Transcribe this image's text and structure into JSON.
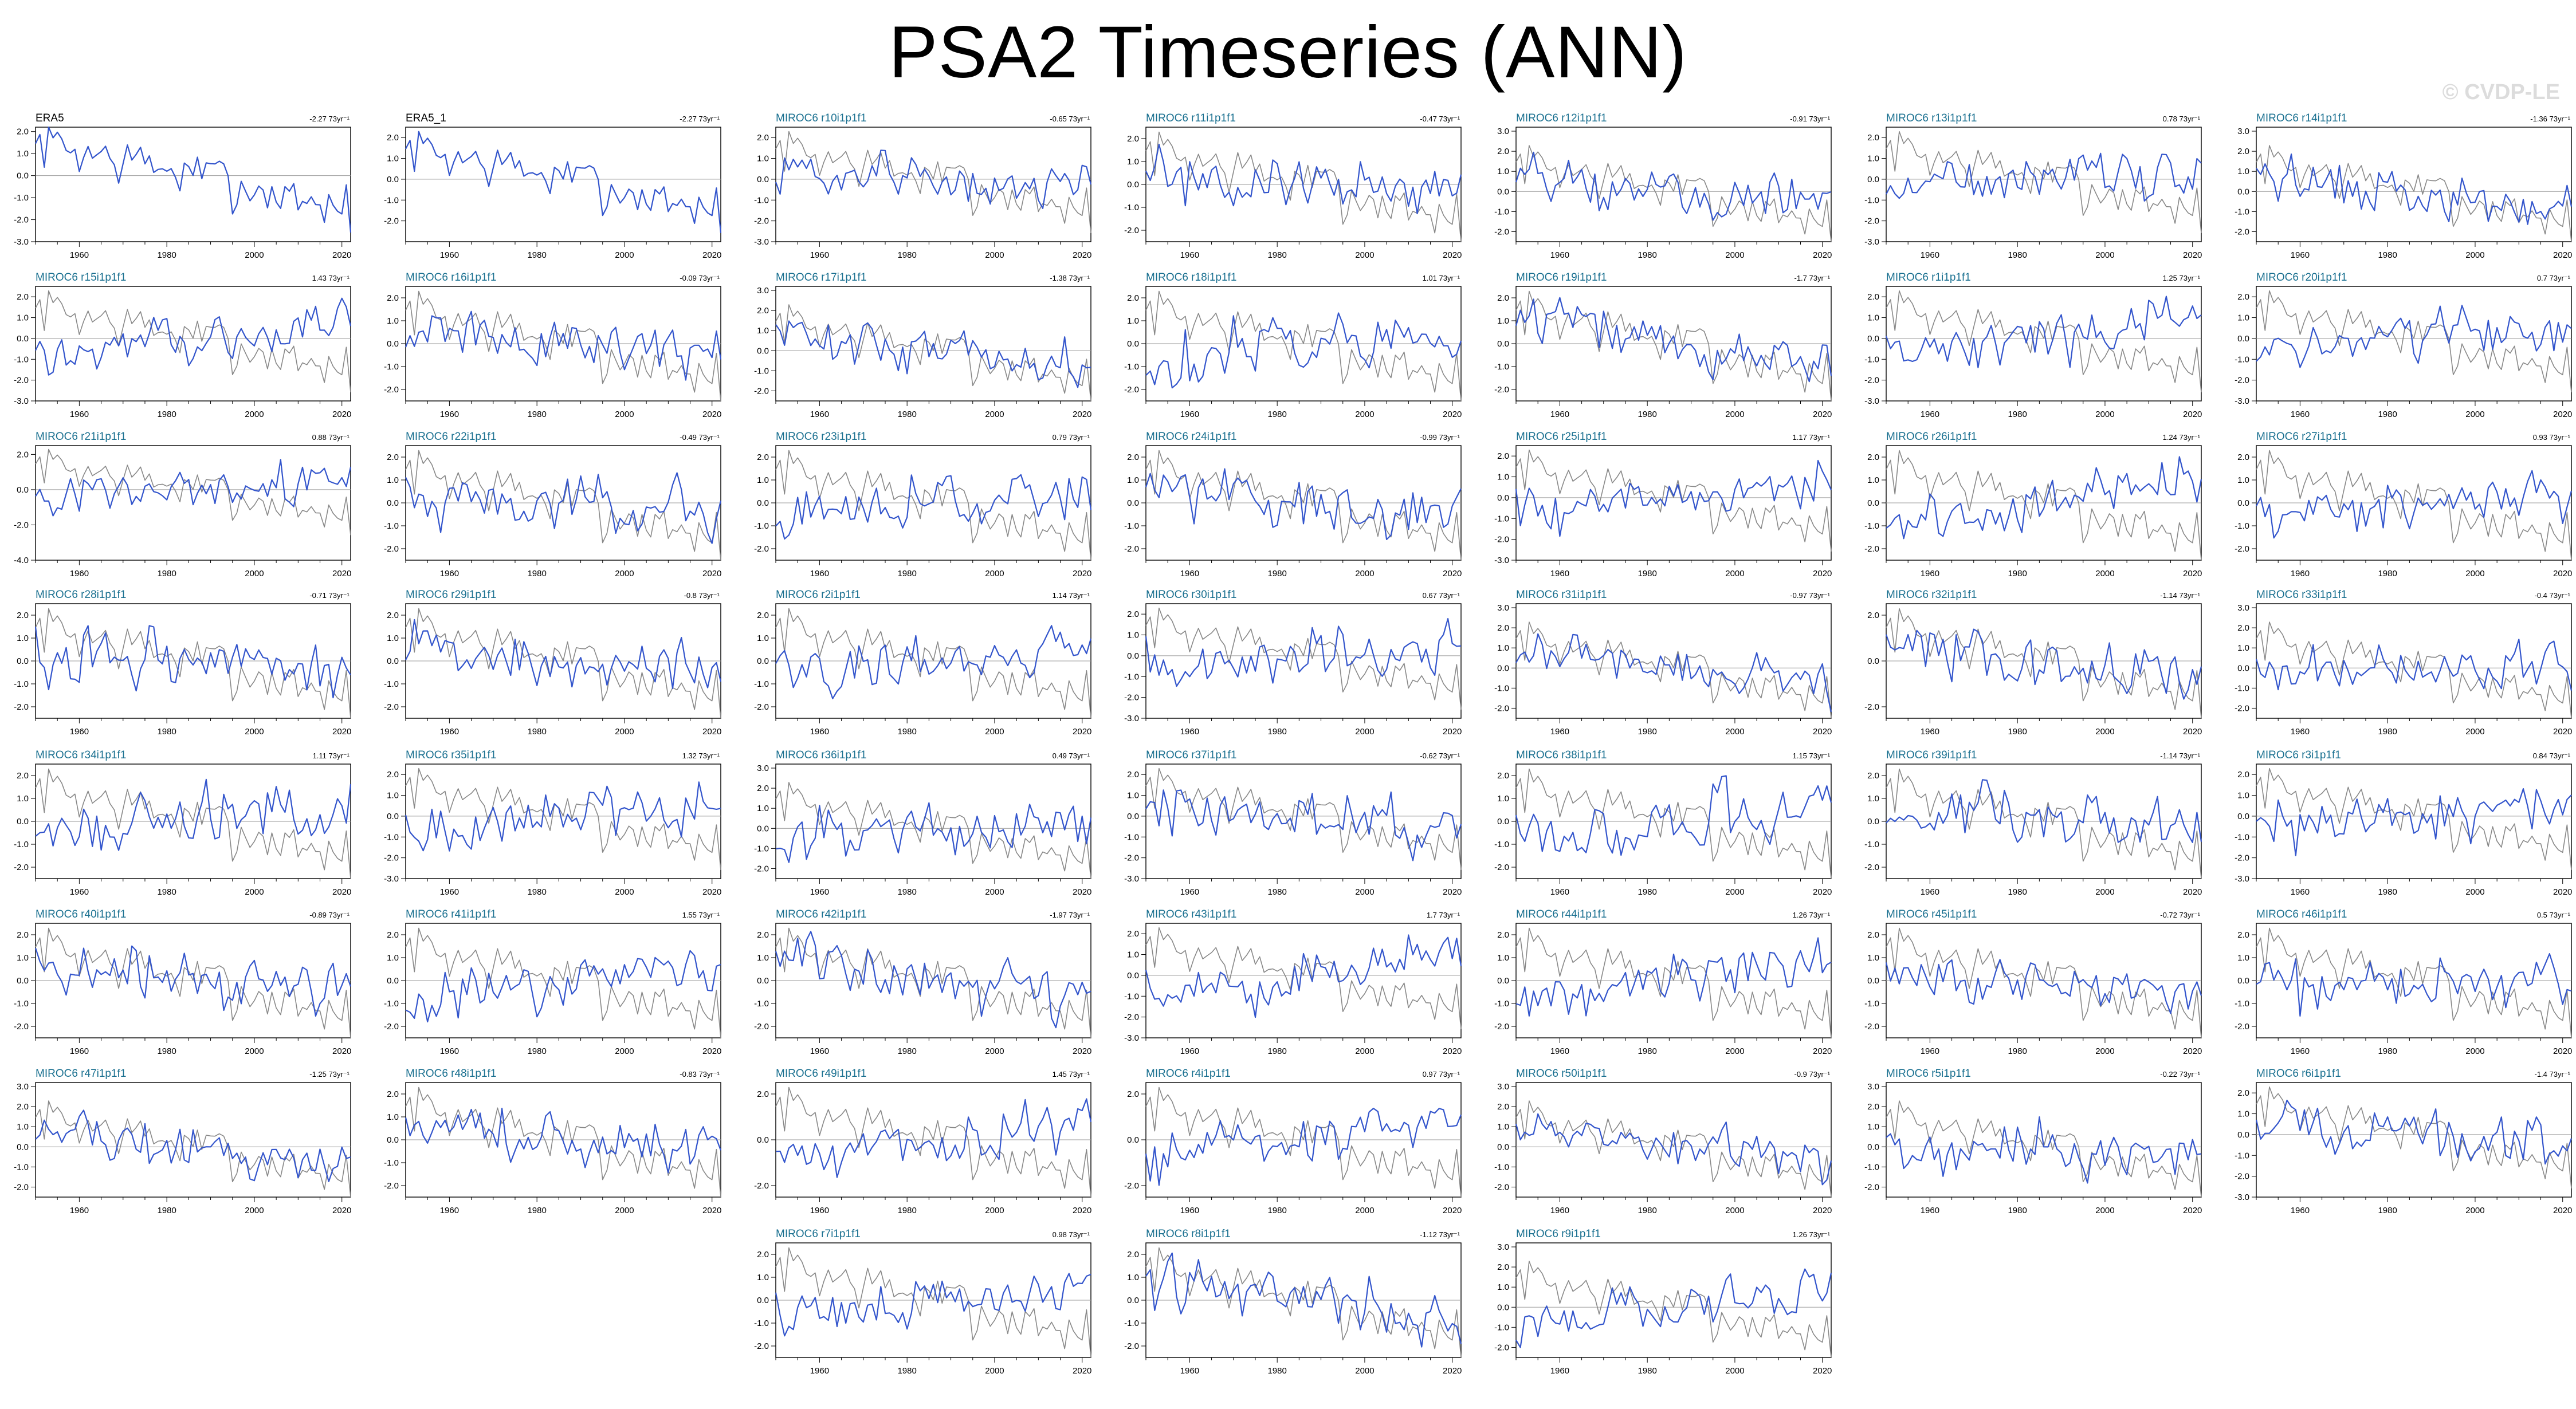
{
  "title": "PSA2 Timeseries (ANN)",
  "watermark": "© CVDP-LE",
  "colors": {
    "model_line": "#3355cc",
    "obs_line": "#888888",
    "model_title": "#1a7090",
    "obs_title": "#000000",
    "zero_line": "#9a9a9a",
    "frame": "#000000"
  },
  "chart_data": {
    "type": "line",
    "shared": {
      "x_range": [
        1950,
        2022
      ],
      "x_ticks": [
        1960,
        1980,
        2000,
        2020
      ],
      "trend_unit_label": "73yr⁻¹",
      "observed_reference": "ERA5 series drawn in grey beneath each MIROC6 member",
      "grid": false
    },
    "panels": [
      {
        "name": "ERA5",
        "trend": "-2.27",
        "obs": true,
        "yticks": [
          "2.0",
          "1.0",
          "0.0",
          "-1.0",
          "-2.0",
          "-3.0"
        ],
        "ylim": [
          -3,
          2.2
        ]
      },
      {
        "name": "ERA5_1",
        "trend": "-2.27",
        "obs": true,
        "yticks": [
          "2.0",
          "1.0",
          "0.0",
          "-1.0",
          "-2.0"
        ],
        "ylim": [
          -3,
          2.5
        ]
      },
      {
        "name": "MIROC6 r10i1p1f1",
        "trend": "-0.65",
        "obs": false,
        "yticks": [
          "2.0",
          "1.0",
          "0.0",
          "-1.0",
          "-2.0",
          "-3.0"
        ],
        "ylim": [
          -3,
          2.5
        ]
      },
      {
        "name": "MIROC6 r11i1p1f1",
        "trend": "-0.47",
        "obs": false,
        "yticks": [
          "2.0",
          "1.0",
          "0.0",
          "-1.0",
          "-2.0"
        ],
        "ylim": [
          -2.5,
          2.5
        ]
      },
      {
        "name": "MIROC6 r12i1p1f1",
        "trend": "-0.91",
        "obs": false,
        "yticks": [
          "3.0",
          "2.0",
          "1.0",
          "0.0",
          "-1.0",
          "-2.0"
        ],
        "ylim": [
          -2.5,
          3.2
        ]
      },
      {
        "name": "MIROC6 r13i1p1f1",
        "trend": "0.78",
        "obs": false,
        "yticks": [
          "2.0",
          "1.0",
          "0.0",
          "-1.0",
          "-2.0",
          "-3.0"
        ],
        "ylim": [
          -3,
          2.5
        ]
      },
      {
        "name": "MIROC6 r14i1p1f1",
        "trend": "-1.36",
        "obs": false,
        "yticks": [
          "3.0",
          "2.0",
          "1.0",
          "0.0",
          "-1.0",
          "-2.0"
        ],
        "ylim": [
          -2.5,
          3.2
        ]
      },
      {
        "name": "MIROC6 r15i1p1f1",
        "trend": "1.43",
        "obs": false,
        "yticks": [
          "2.0",
          "1.0",
          "0.0",
          "-1.0",
          "-2.0",
          "-3.0"
        ],
        "ylim": [
          -3,
          2.5
        ]
      },
      {
        "name": "MIROC6 r16i1p1f1",
        "trend": "-0.09",
        "obs": false,
        "yticks": [
          "2.0",
          "1.0",
          "0.0",
          "-1.0",
          "-2.0"
        ],
        "ylim": [
          -2.5,
          2.5
        ]
      },
      {
        "name": "MIROC6 r17i1p1f1",
        "trend": "-1.38",
        "obs": false,
        "yticks": [
          "3.0",
          "2.0",
          "1.0",
          "0.0",
          "-1.0",
          "-2.0"
        ],
        "ylim": [
          -2.5,
          3.2
        ]
      },
      {
        "name": "MIROC6 r18i1p1f1",
        "trend": "1.01",
        "obs": false,
        "yticks": [
          "2.0",
          "1.0",
          "0.0",
          "-1.0",
          "-2.0"
        ],
        "ylim": [
          -2.5,
          2.5
        ]
      },
      {
        "name": "MIROC6 r19i1p1f1",
        "trend": "-1.7",
        "obs": false,
        "yticks": [
          "2.0",
          "1.0",
          "0.0",
          "-1.0",
          "-2.0"
        ],
        "ylim": [
          -2.5,
          2.5
        ]
      },
      {
        "name": "MIROC6 r1i1p1f1",
        "trend": "1.25",
        "obs": false,
        "yticks": [
          "2.0",
          "1.0",
          "0.0",
          "-1.0",
          "-2.0",
          "-3.0"
        ],
        "ylim": [
          -3,
          2.5
        ]
      },
      {
        "name": "MIROC6 r20i1p1f1",
        "trend": "0.7",
        "obs": false,
        "yticks": [
          "2.0",
          "1.0",
          "0.0",
          "-1.0",
          "-2.0",
          "-3.0"
        ],
        "ylim": [
          -3,
          2.5
        ]
      },
      {
        "name": "MIROC6 r21i1p1f1",
        "trend": "0.88",
        "obs": false,
        "yticks": [
          "2.0",
          "0.0",
          "-2.0",
          "-4.0"
        ],
        "ylim": [
          -4,
          2.5
        ]
      },
      {
        "name": "MIROC6 r22i1p1f1",
        "trend": "-0.49",
        "obs": false,
        "yticks": [
          "2.0",
          "1.0",
          "0.0",
          "-1.0",
          "-2.0"
        ],
        "ylim": [
          -2.5,
          2.5
        ]
      },
      {
        "name": "MIROC6 r23i1p1f1",
        "trend": "0.79",
        "obs": false,
        "yticks": [
          "2.0",
          "1.0",
          "0.0",
          "-1.0",
          "-2.0"
        ],
        "ylim": [
          -2.5,
          2.5
        ]
      },
      {
        "name": "MIROC6 r24i1p1f1",
        "trend": "-0.99",
        "obs": false,
        "yticks": [
          "2.0",
          "1.0",
          "0.0",
          "-1.0",
          "-2.0"
        ],
        "ylim": [
          -2.5,
          2.5
        ]
      },
      {
        "name": "MIROC6 r25i1p1f1",
        "trend": "1.17",
        "obs": false,
        "yticks": [
          "2.0",
          "1.0",
          "0.0",
          "-1.0",
          "-2.0",
          "-3.0"
        ],
        "ylim": [
          -3,
          2.5
        ]
      },
      {
        "name": "MIROC6 r26i1p1f1",
        "trend": "1.24",
        "obs": false,
        "yticks": [
          "2.0",
          "1.0",
          "0.0",
          "-1.0",
          "-2.0"
        ],
        "ylim": [
          -2.5,
          2.5
        ]
      },
      {
        "name": "MIROC6 r27i1p1f1",
        "trend": "0.93",
        "obs": false,
        "yticks": [
          "2.0",
          "1.0",
          "0.0",
          "-1.0",
          "-2.0"
        ],
        "ylim": [
          -2.5,
          2.5
        ]
      },
      {
        "name": "MIROC6 r28i1p1f1",
        "trend": "-0.71",
        "obs": false,
        "yticks": [
          "2.0",
          "1.0",
          "0.0",
          "-1.0",
          "-2.0"
        ],
        "ylim": [
          -2.5,
          2.5
        ]
      },
      {
        "name": "MIROC6 r29i1p1f1",
        "trend": "-0.8",
        "obs": false,
        "yticks": [
          "2.0",
          "1.0",
          "0.0",
          "-1.0",
          "-2.0"
        ],
        "ylim": [
          -2.5,
          2.5
        ]
      },
      {
        "name": "MIROC6 r2i1p1f1",
        "trend": "1.14",
        "obs": false,
        "yticks": [
          "2.0",
          "1.0",
          "0.0",
          "-1.0",
          "-2.0"
        ],
        "ylim": [
          -2.5,
          2.5
        ]
      },
      {
        "name": "MIROC6 r30i1p1f1",
        "trend": "0.67",
        "obs": false,
        "yticks": [
          "2.0",
          "1.0",
          "0.0",
          "-1.0",
          "-2.0",
          "-3.0"
        ],
        "ylim": [
          -3,
          2.5
        ]
      },
      {
        "name": "MIROC6 r31i1p1f1",
        "trend": "-0.97",
        "obs": false,
        "yticks": [
          "3.0",
          "2.0",
          "1.0",
          "0.0",
          "-1.0",
          "-2.0"
        ],
        "ylim": [
          -2.5,
          3.2
        ]
      },
      {
        "name": "MIROC6 r32i1p1f1",
        "trend": "-1.14",
        "obs": false,
        "yticks": [
          "2.0",
          "0.0",
          "-2.0"
        ],
        "ylim": [
          -2.5,
          2.5
        ]
      },
      {
        "name": "MIROC6 r33i1p1f1",
        "trend": "-0.4",
        "obs": false,
        "yticks": [
          "3.0",
          "2.0",
          "1.0",
          "0.0",
          "-1.0",
          "-2.0"
        ],
        "ylim": [
          -2.5,
          3.2
        ]
      },
      {
        "name": "MIROC6 r34i1p1f1",
        "trend": "1.11",
        "obs": false,
        "yticks": [
          "2.0",
          "1.0",
          "0.0",
          "-1.0",
          "-2.0"
        ],
        "ylim": [
          -2.5,
          2.5
        ]
      },
      {
        "name": "MIROC6 r35i1p1f1",
        "trend": "1.32",
        "obs": false,
        "yticks": [
          "2.0",
          "1.0",
          "0.0",
          "-1.0",
          "-2.0",
          "-3.0"
        ],
        "ylim": [
          -3,
          2.5
        ]
      },
      {
        "name": "MIROC6 r36i1p1f1",
        "trend": "0.49",
        "obs": false,
        "yticks": [
          "3.0",
          "2.0",
          "1.0",
          "0.0",
          "-1.0",
          "-2.0"
        ],
        "ylim": [
          -2.5,
          3.2
        ]
      },
      {
        "name": "MIROC6 r37i1p1f1",
        "trend": "-0.62",
        "obs": false,
        "yticks": [
          "2.0",
          "1.0",
          "0.0",
          "-1.0",
          "-2.0",
          "-3.0"
        ],
        "ylim": [
          -3,
          2.5
        ]
      },
      {
        "name": "MIROC6 r38i1p1f1",
        "trend": "1.15",
        "obs": false,
        "yticks": [
          "2.0",
          "1.0",
          "0.0",
          "-1.0",
          "-2.0"
        ],
        "ylim": [
          -2.5,
          2.5
        ]
      },
      {
        "name": "MIROC6 r39i1p1f1",
        "trend": "-1.14",
        "obs": false,
        "yticks": [
          "2.0",
          "1.0",
          "0.0",
          "-1.0",
          "-2.0"
        ],
        "ylim": [
          -2.5,
          2.5
        ]
      },
      {
        "name": "MIROC6 r3i1p1f1",
        "trend": "0.84",
        "obs": false,
        "yticks": [
          "2.0",
          "1.0",
          "0.0",
          "-1.0",
          "-2.0",
          "-3.0"
        ],
        "ylim": [
          -3,
          2.5
        ]
      },
      {
        "name": "MIROC6 r40i1p1f1",
        "trend": "-0.89",
        "obs": false,
        "yticks": [
          "2.0",
          "1.0",
          "0.0",
          "-1.0",
          "-2.0"
        ],
        "ylim": [
          -2.5,
          2.5
        ]
      },
      {
        "name": "MIROC6 r41i1p1f1",
        "trend": "1.55",
        "obs": false,
        "yticks": [
          "2.0",
          "1.0",
          "0.0",
          "-1.0",
          "-2.0"
        ],
        "ylim": [
          -2.5,
          2.5
        ]
      },
      {
        "name": "MIROC6 r42i1p1f1",
        "trend": "-1.97",
        "obs": false,
        "yticks": [
          "2.0",
          "1.0",
          "0.0",
          "-1.0",
          "-2.0"
        ],
        "ylim": [
          -2.5,
          2.5
        ]
      },
      {
        "name": "MIROC6 r43i1p1f1",
        "trend": "1.7",
        "obs": false,
        "yticks": [
          "2.0",
          "1.0",
          "0.0",
          "-1.0",
          "-2.0",
          "-3.0"
        ],
        "ylim": [
          -3,
          2.5
        ]
      },
      {
        "name": "MIROC6 r44i1p1f1",
        "trend": "1.26",
        "obs": false,
        "yticks": [
          "2.0",
          "1.0",
          "0.0",
          "-1.0",
          "-2.0"
        ],
        "ylim": [
          -2.5,
          2.5
        ]
      },
      {
        "name": "MIROC6 r45i1p1f1",
        "trend": "-0.72",
        "obs": false,
        "yticks": [
          "2.0",
          "1.0",
          "0.0",
          "-1.0",
          "-2.0"
        ],
        "ylim": [
          -2.5,
          2.5
        ]
      },
      {
        "name": "MIROC6 r46i1p1f1",
        "trend": "0.5",
        "obs": false,
        "yticks": [
          "2.0",
          "1.0",
          "0.0",
          "-1.0",
          "-2.0"
        ],
        "ylim": [
          -2.5,
          2.5
        ]
      },
      {
        "name": "MIROC6 r47i1p1f1",
        "trend": "-1.25",
        "obs": false,
        "yticks": [
          "3.0",
          "2.0",
          "1.0",
          "0.0",
          "-1.0",
          "-2.0"
        ],
        "ylim": [
          -2.5,
          3.2
        ]
      },
      {
        "name": "MIROC6 r48i1p1f1",
        "trend": "-0.83",
        "obs": false,
        "yticks": [
          "2.0",
          "1.0",
          "0.0",
          "-1.0",
          "-2.0"
        ],
        "ylim": [
          -2.5,
          2.5
        ]
      },
      {
        "name": "MIROC6 r49i1p1f1",
        "trend": "1.45",
        "obs": false,
        "yticks": [
          "2.0",
          "0.0",
          "-2.0"
        ],
        "ylim": [
          -2.5,
          2.5
        ]
      },
      {
        "name": "MIROC6 r4i1p1f1",
        "trend": "0.97",
        "obs": false,
        "yticks": [
          "2.0",
          "0.0",
          "-2.0"
        ],
        "ylim": [
          -2.5,
          2.5
        ]
      },
      {
        "name": "MIROC6 r50i1p1f1",
        "trend": "-0.9",
        "obs": false,
        "yticks": [
          "3.0",
          "2.0",
          "1.0",
          "0.0",
          "-1.0",
          "-2.0"
        ],
        "ylim": [
          -2.5,
          3.2
        ]
      },
      {
        "name": "MIROC6 r5i1p1f1",
        "trend": "-0.22",
        "obs": false,
        "yticks": [
          "3.0",
          "2.0",
          "1.0",
          "0.0",
          "-1.0",
          "-2.0"
        ],
        "ylim": [
          -2.5,
          3.2
        ]
      },
      {
        "name": "MIROC6 r6i1p1f1",
        "trend": "-1.4",
        "obs": false,
        "yticks": [
          "2.0",
          "1.0",
          "0.0",
          "-1.0",
          "-2.0",
          "-3.0"
        ],
        "ylim": [
          -3,
          2.5
        ]
      },
      {
        "name": "MIROC6 r7i1p1f1",
        "trend": "0.98",
        "obs": false,
        "yticks": [
          "2.0",
          "1.0",
          "0.0",
          "-1.0",
          "-2.0"
        ],
        "ylim": [
          -2.5,
          2.5
        ]
      },
      {
        "name": "MIROC6 r8i1p1f1",
        "trend": "-1.12",
        "obs": false,
        "yticks": [
          "2.0",
          "1.0",
          "0.0",
          "-1.0",
          "-2.0"
        ],
        "ylim": [
          -2.5,
          2.5
        ]
      },
      {
        "name": "MIROC6 r9i1p1f1",
        "trend": "1.26",
        "obs": false,
        "yticks": [
          "3.0",
          "2.0",
          "1.0",
          "0.0",
          "-1.0",
          "-2.0"
        ],
        "ylim": [
          -2.5,
          3.2
        ]
      }
    ]
  }
}
